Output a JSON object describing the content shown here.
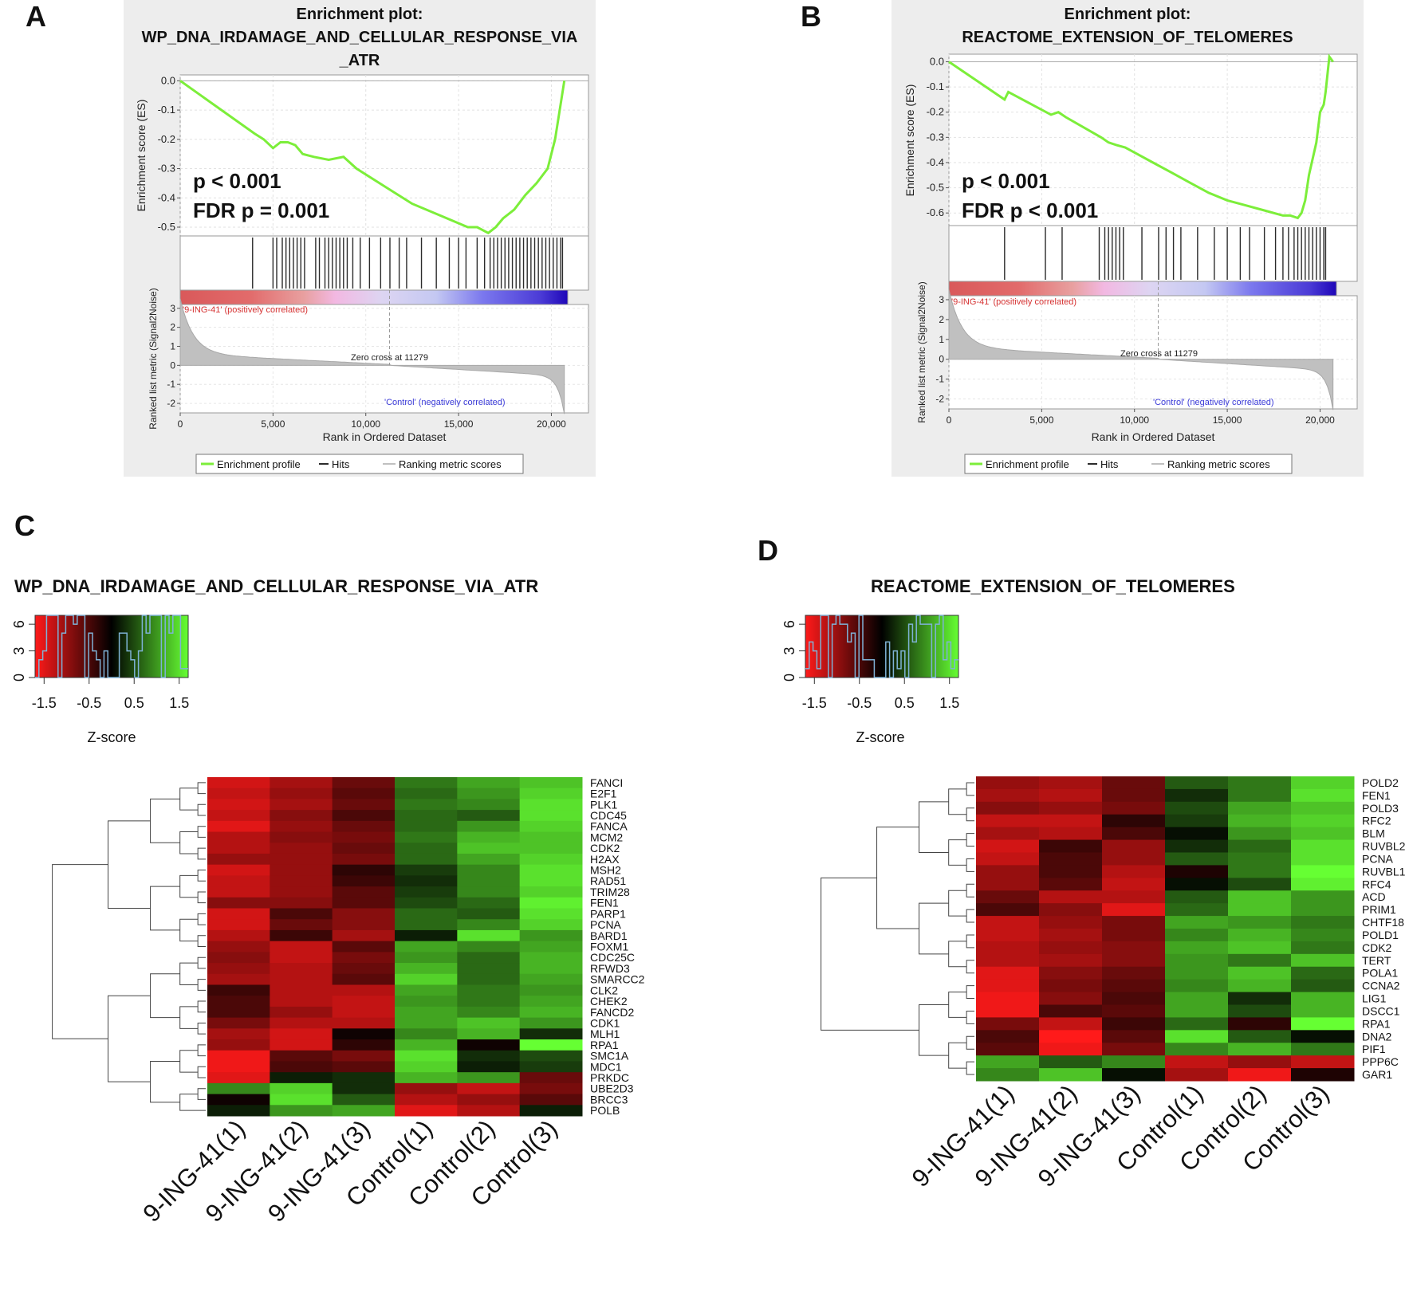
{
  "panels": {
    "A": {
      "letter": "A",
      "title_line1": "Enrichment plot:",
      "title_line2": "WP_DNA_IRDAMAGE_AND_CELLULAR_RESPONSE_VIA",
      "title_line3": "_ATR",
      "p_value": "p < 0.001",
      "fdr": "FDR p = 0.001",
      "es_ylabel": "Enrichment score (ES)",
      "rank_ylabel": "Ranked list metric (Signal2Noise)",
      "xlabel": "Rank in Ordered Dataset",
      "pos_label": "'9-ING-41' (positively correlated)",
      "neg_label": "'Control' (negatively correlated)",
      "zero_cross": "Zero cross at 11279",
      "legend": {
        "profile": "Enrichment profile",
        "hits": "Hits",
        "ranking": "Ranking metric scores"
      }
    },
    "B": {
      "letter": "B",
      "title_line1": "Enrichment plot:",
      "title_line2": "REACTOME_EXTENSION_OF_TELOMERES",
      "p_value": "p < 0.001",
      "fdr": "FDR p < 0.001",
      "es_ylabel": "Enrichment score (ES)",
      "rank_ylabel": "Ranked list metric (Signal2Noise)",
      "xlabel": "Rank in Ordered Dataset",
      "pos_label": "'9-ING-41' (positively correlated)",
      "neg_label": "'Control' (negatively correlated)",
      "zero_cross": "Zero cross at 11279",
      "legend": {
        "profile": "Enrichment profile",
        "hits": "Hits",
        "ranking": "Ranking metric scores"
      }
    },
    "C": {
      "letter": "C",
      "title": "WP_DNA_IRDAMAGE_AND_CELLULAR_RESPONSE_VIA_ATR",
      "zlabel": "Z-score"
    },
    "D": {
      "letter": "D",
      "title": "REACTOME_EXTENSION_OF_TELOMERES",
      "zlabel": "Z-score"
    }
  },
  "colors": {
    "profile": "#7cee3a",
    "hit": "#2b2b2b",
    "high": "#ff1a1a",
    "low": "#66ff33",
    "mid": "#000000",
    "histogram": "#7fb2d6"
  },
  "chart_data": [
    {
      "type": "line",
      "panel": "A",
      "title": "Enrichment plot: WP_DNA_IRDAMAGE_AND_CELLULAR_RESPONSE_VIA_ATR",
      "xlabel": "Rank in Ordered Dataset",
      "ylabel": "Enrichment score (ES)",
      "xlim": [
        0,
        22000
      ],
      "ylim": [
        -0.53,
        0.02
      ],
      "xticks": [
        0,
        5000,
        10000,
        15000,
        20000
      ],
      "xtick_labels": [
        "0",
        "5,000",
        "10,000",
        "15,000",
        "20,000"
      ],
      "yticks": [
        0.0,
        -0.1,
        -0.2,
        -0.3,
        -0.4,
        -0.5
      ],
      "ytick_labels": [
        "0.0",
        "-0.1",
        "-0.2",
        "-0.3",
        "-0.4",
        "-0.5"
      ],
      "es_curve": {
        "x": [
          0,
          2000,
          4000,
          4500,
          5000,
          5400,
          5800,
          6200,
          6600,
          7200,
          8000,
          8800,
          9500,
          11000,
          12500,
          14000,
          15500,
          16000,
          16600,
          17000,
          17400,
          18000,
          18600,
          19200,
          19800,
          20200,
          20500,
          20700
        ],
        "y": [
          0.0,
          -0.09,
          -0.18,
          -0.2,
          -0.23,
          -0.21,
          -0.21,
          -0.22,
          -0.25,
          -0.26,
          -0.27,
          -0.26,
          -0.3,
          -0.36,
          -0.42,
          -0.46,
          -0.5,
          -0.5,
          -0.52,
          -0.5,
          -0.47,
          -0.44,
          -0.39,
          -0.35,
          -0.3,
          -0.2,
          -0.08,
          0.0
        ]
      },
      "hits_x": [
        3900,
        5000,
        5200,
        5500,
        5700,
        5900,
        6100,
        6300,
        6500,
        6700,
        7300,
        7500,
        7800,
        8000,
        8200,
        8400,
        8600,
        8800,
        9000,
        9300,
        9700,
        10200,
        10800,
        11300,
        11800,
        12200,
        13000,
        13800,
        14500,
        15000,
        15400,
        16000,
        16400,
        16700,
        16900,
        17100,
        17300,
        17500,
        17700,
        17900,
        18100,
        18300,
        18500,
        18700,
        18900,
        19100,
        19300,
        19500,
        19700,
        19900,
        20100,
        20300,
        20500,
        20600
      ],
      "ranking_metric": {
        "ylabel": "Ranked list metric (Signal2Noise)",
        "ylim": [
          -2.5,
          3.2
        ],
        "yticks": [
          3,
          2,
          1,
          0,
          -1,
          -2
        ],
        "zero_cross": 11279
      },
      "legend": [
        "Enrichment profile",
        "Hits",
        "Ranking metric scores"
      ],
      "annotations": [
        "p < 0.001",
        "FDR p = 0.001",
        "Zero cross at 11279",
        "'9-ING-41' (positively correlated)",
        "'Control' (negatively correlated)"
      ]
    },
    {
      "type": "line",
      "panel": "B",
      "title": "Enrichment plot: REACTOME_EXTENSION_OF_TELOMERES",
      "xlabel": "Rank in Ordered Dataset",
      "ylabel": "Enrichment score (ES)",
      "xlim": [
        0,
        22000
      ],
      "ylim": [
        -0.65,
        0.03
      ],
      "xticks": [
        0,
        5000,
        10000,
        15000,
        20000
      ],
      "xtick_labels": [
        "0",
        "5,000",
        "10,000",
        "15,000",
        "20,000"
      ],
      "yticks": [
        0.0,
        -0.1,
        -0.2,
        -0.3,
        -0.4,
        -0.5,
        -0.6
      ],
      "ytick_labels": [
        "0.0",
        "-0.1",
        "-0.2",
        "-0.3",
        "-0.4",
        "-0.5",
        "-0.6"
      ],
      "es_curve": {
        "x": [
          0,
          3000,
          3200,
          5500,
          5900,
          6300,
          8200,
          8600,
          9000,
          9500,
          10000,
          11000,
          12000,
          13000,
          14000,
          15000,
          16000,
          17000,
          18000,
          18400,
          18800,
          19000,
          19200,
          19400,
          19800,
          20000,
          20200,
          20300,
          20500,
          20700
        ],
        "y": [
          0.0,
          -0.15,
          -0.12,
          -0.21,
          -0.2,
          -0.22,
          -0.3,
          -0.32,
          -0.33,
          -0.34,
          -0.36,
          -0.4,
          -0.44,
          -0.48,
          -0.52,
          -0.55,
          -0.57,
          -0.59,
          -0.61,
          -0.61,
          -0.62,
          -0.6,
          -0.55,
          -0.45,
          -0.32,
          -0.2,
          -0.17,
          -0.12,
          0.02,
          0.0
        ]
      },
      "hits_x": [
        3000,
        5200,
        6100,
        8100,
        8400,
        8600,
        8800,
        9000,
        9200,
        9400,
        10400,
        11300,
        11700,
        12100,
        12500,
        13400,
        14300,
        15000,
        15700,
        16200,
        17000,
        17600,
        18000,
        18300,
        18600,
        18800,
        19000,
        19200,
        19400,
        19600,
        19800,
        20000,
        20200,
        20300
      ],
      "ranking_metric": {
        "ylabel": "Ranked list metric (Signal2Noise)",
        "ylim": [
          -2.5,
          3.2
        ],
        "yticks": [
          3,
          2,
          1,
          0,
          -1,
          -2
        ],
        "zero_cross": 11279
      },
      "legend": [
        "Enrichment profile",
        "Hits",
        "Ranking metric scores"
      ],
      "annotations": [
        "p < 0.001",
        "FDR p < 0.001",
        "Zero cross at 11279",
        "'9-ING-41' (positively correlated)",
        "'Control' (negatively correlated)"
      ]
    },
    {
      "type": "heatmap",
      "panel": "C",
      "title": "WP_DNA_IRDAMAGE_AND_CELLULAR_RESPONSE_VIA_ATR",
      "colorbar": {
        "label": "Z-score",
        "range": [
          -1.7,
          1.7
        ],
        "ticks": [
          "-1.5",
          "-0.5",
          "0.5",
          "1.5"
        ],
        "count_ticks": [
          "0",
          "3",
          "6"
        ]
      },
      "columns": [
        "9-ING-41(1)",
        "9-ING-41(2)",
        "9-ING-41(3)",
        "Control(1)",
        "Control(2)",
        "Control(3)"
      ],
      "rows": [
        "FANCI",
        "E2F1",
        "PLK1",
        "CDC45",
        "FANCA",
        "MCM2",
        "CDK2",
        "H2AX",
        "MSH2",
        "RAD51",
        "TRIM28",
        "FEN1",
        "PARP1",
        "PCNA",
        "BARD1",
        "FOXM1",
        "CDC25C",
        "RFWD3",
        "SMARCC2",
        "CLK2",
        "CHEK2",
        "FANCD2",
        "CDK1",
        "MLH1",
        "RPA1",
        "SMC1A",
        "MDC1",
        "PRKDC",
        "UBE2D3",
        "BRCC3",
        "POLB"
      ],
      "values": [
        [
          -1.4,
          -1.1,
          -0.7,
          0.8,
          1.1,
          1.3
        ],
        [
          -1.3,
          -1.0,
          -0.6,
          0.7,
          1.0,
          1.4
        ],
        [
          -1.4,
          -1.1,
          -0.7,
          0.8,
          0.9,
          1.5
        ],
        [
          -1.3,
          -0.9,
          -0.5,
          0.7,
          0.6,
          1.5
        ],
        [
          -1.5,
          -1.0,
          -0.7,
          0.7,
          1.0,
          1.4
        ],
        [
          -1.2,
          -0.9,
          -0.8,
          0.8,
          1.2,
          1.3
        ],
        [
          -1.2,
          -1.0,
          -0.7,
          0.7,
          1.3,
          1.3
        ],
        [
          -1.0,
          -1.0,
          -0.8,
          0.7,
          1.1,
          1.4
        ],
        [
          -1.4,
          -1.0,
          -0.3,
          0.4,
          0.9,
          1.5
        ],
        [
          -1.3,
          -1.0,
          -0.4,
          0.3,
          0.9,
          1.5
        ],
        [
          -1.3,
          -1.0,
          -0.6,
          0.4,
          0.9,
          1.4
        ],
        [
          -0.9,
          -0.9,
          -0.6,
          0.5,
          0.7,
          1.6
        ],
        [
          -1.4,
          -0.5,
          -0.9,
          0.7,
          0.6,
          1.5
        ],
        [
          -1.4,
          -0.7,
          -0.9,
          0.7,
          0.9,
          1.4
        ],
        [
          -1.2,
          -0.4,
          -1.1,
          0.2,
          1.5,
          1.0
        ],
        [
          -1.0,
          -1.3,
          -0.6,
          1.1,
          0.9,
          1.1
        ],
        [
          -0.9,
          -1.3,
          -0.8,
          1.0,
          0.7,
          1.2
        ],
        [
          -1.0,
          -1.2,
          -0.7,
          1.2,
          0.7,
          1.2
        ],
        [
          -1.1,
          -1.2,
          -0.6,
          1.4,
          0.7,
          1.1
        ],
        [
          -0.4,
          -1.2,
          -1.2,
          1.1,
          0.8,
          1.0
        ],
        [
          -0.5,
          -1.2,
          -1.3,
          1.0,
          0.8,
          1.1
        ],
        [
          -0.5,
          -1.0,
          -1.3,
          1.1,
          0.9,
          1.2
        ],
        [
          -0.8,
          -1.2,
          -1.2,
          1.1,
          1.3,
          1.0
        ],
        [
          -1.1,
          -1.4,
          -0.1,
          0.9,
          1.2,
          0.3
        ],
        [
          -1.0,
          -1.4,
          -0.3,
          1.2,
          -0.1,
          1.7
        ],
        [
          -1.6,
          -0.6,
          -0.8,
          1.5,
          0.3,
          0.5
        ],
        [
          -1.6,
          -0.5,
          -0.6,
          1.4,
          0.2,
          0.4
        ],
        [
          -1.5,
          0.2,
          0.3,
          1.2,
          1.0,
          -0.7
        ],
        [
          0.9,
          1.4,
          0.3,
          -1.0,
          -1.3,
          -0.8
        ],
        [
          -0.1,
          1.5,
          0.6,
          -1.2,
          -1.0,
          -0.6
        ],
        [
          0.2,
          1.0,
          1.1,
          -1.5,
          -1.2,
          0.2
        ]
      ]
    },
    {
      "type": "heatmap",
      "panel": "D",
      "title": "REACTOME_EXTENSION_OF_TELOMERES",
      "colorbar": {
        "label": "Z-score",
        "range": [
          -1.7,
          1.7
        ],
        "ticks": [
          "-1.5",
          "-0.5",
          "0.5",
          "1.5"
        ],
        "count_ticks": [
          "0",
          "3",
          "6"
        ]
      },
      "columns": [
        "9-ING-41(1)",
        "9-ING-41(2)",
        "9-ING-41(3)",
        "Control(1)",
        "Control(2)",
        "Control(3)"
      ],
      "rows": [
        "POLD2",
        "FEN1",
        "POLD3",
        "RFC2",
        "BLM",
        "RUVBL2",
        "PCNA",
        "RUVBL1",
        "RFC4",
        "ACD",
        "PRIM1",
        "CHTF18",
        "POLD1",
        "CDK2",
        "TERT",
        "POLA1",
        "CCNA2",
        "LIG1",
        "DSCC1",
        "RPA1",
        "DNA2",
        "PIF1",
        "PPP6C",
        "GAR1"
      ],
      "values": [
        [
          -1.0,
          -1.1,
          -0.7,
          0.6,
          0.8,
          1.4
        ],
        [
          -1.1,
          -1.2,
          -0.7,
          0.3,
          0.8,
          1.5
        ],
        [
          -0.9,
          -1.0,
          -0.8,
          0.5,
          1.1,
          1.3
        ],
        [
          -1.3,
          -1.3,
          -0.3,
          0.4,
          1.2,
          1.4
        ],
        [
          -1.1,
          -1.2,
          -0.5,
          0.1,
          1.0,
          1.3
        ],
        [
          -1.4,
          -0.4,
          -1.0,
          0.3,
          0.7,
          1.5
        ],
        [
          -1.3,
          -0.5,
          -1.0,
          0.6,
          0.8,
          1.5
        ],
        [
          -1.0,
          -0.5,
          -1.2,
          -0.2,
          0.8,
          1.7
        ],
        [
          -1.0,
          -0.6,
          -1.3,
          0.1,
          0.5,
          1.6
        ],
        [
          -0.7,
          -1.2,
          -1.2,
          0.6,
          1.3,
          1.0
        ],
        [
          -0.5,
          -0.9,
          -1.5,
          0.7,
          1.3,
          1.0
        ],
        [
          -1.3,
          -1.0,
          -0.8,
          1.1,
          1.0,
          0.8
        ],
        [
          -1.3,
          -1.1,
          -0.8,
          0.9,
          1.2,
          0.9
        ],
        [
          -1.2,
          -1.0,
          -0.9,
          1.1,
          1.3,
          0.8
        ],
        [
          -1.2,
          -1.1,
          -0.9,
          1.0,
          0.8,
          1.3
        ],
        [
          -1.5,
          -0.9,
          -0.7,
          1.0,
          1.3,
          0.7
        ],
        [
          -1.5,
          -0.8,
          -0.6,
          0.9,
          1.2,
          0.6
        ],
        [
          -1.6,
          -0.9,
          -0.5,
          1.1,
          0.3,
          1.2
        ],
        [
          -1.6,
          -0.5,
          -0.6,
          1.1,
          0.5,
          1.2
        ],
        [
          -0.8,
          -1.3,
          -0.4,
          0.7,
          -0.3,
          1.7
        ],
        [
          -0.5,
          -1.7,
          -0.6,
          1.5,
          0.6,
          0.1
        ],
        [
          -0.6,
          -1.6,
          -0.8,
          0.9,
          1.2,
          0.8
        ],
        [
          1.1,
          0.6,
          0.9,
          -1.3,
          -1.0,
          -1.3
        ],
        [
          0.9,
          1.3,
          0.1,
          -1.1,
          -1.6,
          -0.2
        ]
      ]
    }
  ]
}
